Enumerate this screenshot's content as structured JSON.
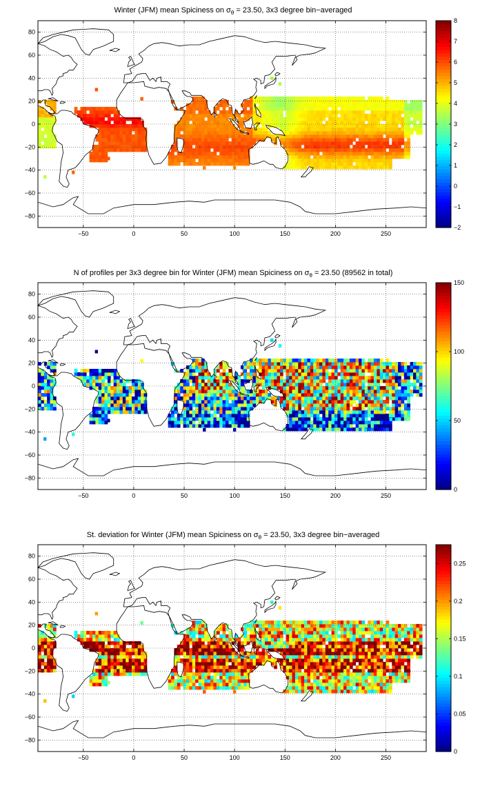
{
  "colormap": "jet",
  "colors": {
    "frame": "#000000",
    "grid": "#444444",
    "background": "#ffffff"
  },
  "chart_data": [
    {
      "type": "heatmap",
      "id": "mean",
      "title_prefix": "Winter (JFM) mean Spiciness on ",
      "title_sigma": "σ",
      "title_sub": "θ",
      "title_suffix": " = 23.50, 3x3 degree bin−averaged",
      "xlim": [
        -95,
        290
      ],
      "ylim": [
        -90,
        90
      ],
      "xticks": [
        -50,
        0,
        50,
        100,
        150,
        200,
        250
      ],
      "yticks": [
        -80,
        -60,
        -40,
        -20,
        0,
        20,
        40,
        60,
        80
      ],
      "grid": true,
      "colorbar": {
        "min": -2,
        "max": 8,
        "ticks": [
          -2,
          -1,
          0,
          1,
          2,
          3,
          4,
          5,
          6,
          7,
          8
        ]
      },
      "value_ranges": [
        {
          "region": "tropical Pacific",
          "approx_range": [
            4,
            7
          ]
        },
        {
          "region": "Indian Ocean",
          "approx_range": [
            5,
            7
          ]
        },
        {
          "region": "tropical Atlantic",
          "approx_range": [
            5,
            7
          ]
        },
        {
          "region": "western tropical Pacific",
          "approx_range": [
            3,
            4.5
          ]
        }
      ]
    },
    {
      "type": "heatmap",
      "id": "count",
      "title_prefix": "N of profiles per 3x3 degree bin for Winter (JFM) mean Spiciness on ",
      "title_sigma": "σ",
      "title_sub": "θ",
      "title_suffix": " = 23.50 (89562 in total)",
      "total_profiles": 89562,
      "xlim": [
        -95,
        290
      ],
      "ylim": [
        -90,
        90
      ],
      "xticks": [
        -50,
        0,
        50,
        100,
        150,
        200,
        250
      ],
      "yticks": [
        -80,
        -60,
        -40,
        -20,
        0,
        20,
        40,
        60,
        80
      ],
      "grid": true,
      "colorbar": {
        "min": 0,
        "max": 150,
        "ticks": [
          0,
          50,
          100,
          150
        ]
      }
    },
    {
      "type": "heatmap",
      "id": "std",
      "title_prefix": "St. deviation for Winter (JFM) mean Spiciness on ",
      "title_sigma": "σ",
      "title_sub": "θ",
      "title_suffix": " = 23.50, 3x3 degree bin−averaged",
      "xlim": [
        -95,
        290
      ],
      "ylim": [
        -90,
        90
      ],
      "xticks": [
        -50,
        0,
        50,
        100,
        150,
        200,
        250
      ],
      "yticks": [
        -80,
        -60,
        -40,
        -20,
        0,
        20,
        40,
        60,
        80
      ],
      "grid": true,
      "colorbar": {
        "min": 0,
        "max": 0.275,
        "ticks": [
          0,
          0.05,
          0.1,
          0.15,
          0.2,
          0.25
        ]
      }
    }
  ]
}
